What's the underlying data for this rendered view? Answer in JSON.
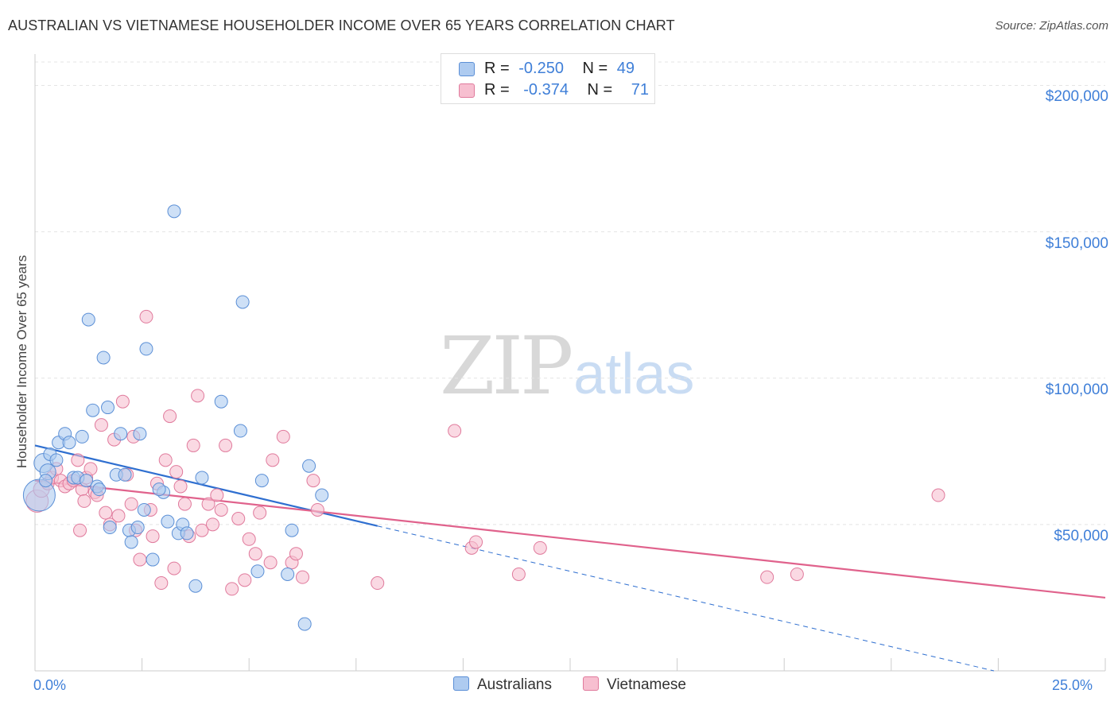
{
  "title": "AUSTRALIAN VS VIETNAMESE HOUSEHOLDER INCOME OVER 65 YEARS CORRELATION CHART",
  "source": "Source: ZipAtlas.com",
  "watermark": {
    "zip": "ZIP",
    "atlas": "atlas"
  },
  "legend": {
    "r_label": "R =",
    "n_label": "N =",
    "series": [
      {
        "name": "Australians",
        "r": "-0.250",
        "n": "49",
        "fill": "#aecbf0",
        "stroke": "#5b8fd6"
      },
      {
        "name": "Vietnamese",
        "r": "-0.374",
        "n": "71",
        "fill": "#f7bfd0",
        "stroke": "#e07a9c"
      }
    ]
  },
  "chart_data": {
    "type": "scatter",
    "title": "AUSTRALIAN VS VIETNAMESE HOUSEHOLDER INCOME OVER 65 YEARS CORRELATION CHART",
    "xlabel": "",
    "ylabel": "Householder Income Over 65 years",
    "xlim": [
      0,
      25
    ],
    "ylim": [
      0,
      208000
    ],
    "x_tick_labels": [
      "0.0%",
      "25.0%"
    ],
    "y_ticks": [
      50000,
      100000,
      150000,
      200000
    ],
    "y_tick_labels": [
      "$50,000",
      "$100,000",
      "$150,000",
      "$200,000"
    ],
    "grid": true,
    "series": [
      {
        "name": "Australians",
        "color": "#5b8fd6",
        "fill": "#aecbf0",
        "trend": {
          "x0": 0,
          "y0": 77000,
          "x1": 8.0,
          "y1": 49500,
          "dashed_to_x": 25,
          "dashed_to_y": -9000,
          "color": "#2f6fd0"
        },
        "points": [
          [
            0.1,
            60000,
            20
          ],
          [
            0.2,
            71000,
            12
          ],
          [
            0.3,
            68000,
            10
          ],
          [
            0.35,
            74000,
            8
          ],
          [
            0.5,
            72000,
            8
          ],
          [
            0.55,
            78000,
            8
          ],
          [
            0.7,
            81000,
            8
          ],
          [
            0.8,
            78000,
            8
          ],
          [
            0.9,
            66000,
            8
          ],
          [
            1.0,
            66000,
            8
          ],
          [
            1.1,
            80000,
            8
          ],
          [
            1.2,
            65000,
            8
          ],
          [
            1.25,
            120000,
            8
          ],
          [
            1.35,
            89000,
            8
          ],
          [
            1.45,
            63000,
            8
          ],
          [
            1.5,
            62000,
            8
          ],
          [
            1.6,
            107000,
            8
          ],
          [
            1.7,
            90000,
            8
          ],
          [
            1.75,
            49000,
            8
          ],
          [
            1.9,
            67000,
            8
          ],
          [
            2.0,
            81000,
            8
          ],
          [
            2.1,
            67000,
            8
          ],
          [
            2.2,
            48000,
            8
          ],
          [
            2.25,
            44000,
            8
          ],
          [
            2.4,
            49000,
            8
          ],
          [
            2.45,
            81000,
            8
          ],
          [
            2.55,
            55000,
            8
          ],
          [
            2.6,
            110000,
            8
          ],
          [
            2.75,
            38000,
            8
          ],
          [
            3.0,
            61000,
            8
          ],
          [
            2.9,
            62000,
            8
          ],
          [
            3.1,
            51000,
            8
          ],
          [
            3.25,
            157000,
            8
          ],
          [
            3.35,
            47000,
            8
          ],
          [
            3.45,
            50000,
            8
          ],
          [
            3.55,
            47000,
            8
          ],
          [
            3.75,
            29000,
            8
          ],
          [
            3.9,
            66000,
            8
          ],
          [
            4.35,
            92000,
            8
          ],
          [
            4.8,
            82000,
            8
          ],
          [
            4.85,
            126000,
            8
          ],
          [
            5.2,
            34000,
            8
          ],
          [
            5.3,
            65000,
            8
          ],
          [
            5.9,
            33000,
            8
          ],
          [
            6.0,
            48000,
            8
          ],
          [
            6.3,
            16000,
            8
          ],
          [
            6.4,
            70000,
            8
          ],
          [
            6.7,
            60000,
            8
          ],
          [
            0.25,
            65000,
            8
          ]
        ]
      },
      {
        "name": "Vietnamese",
        "color": "#e07a9c",
        "fill": "#f7bfd0",
        "trend": {
          "x0": 0,
          "y0": 65000,
          "x1": 25,
          "y1": 25000,
          "color": "#e0628c"
        },
        "points": [
          [
            0.05,
            58000,
            14
          ],
          [
            0.15,
            62000,
            10
          ],
          [
            0.3,
            64000,
            8
          ],
          [
            0.4,
            66000,
            8
          ],
          [
            0.5,
            69000,
            8
          ],
          [
            0.6,
            65000,
            8
          ],
          [
            0.7,
            63000,
            8
          ],
          [
            0.8,
            64000,
            8
          ],
          [
            0.9,
            65000,
            8
          ],
          [
            1.0,
            72000,
            8
          ],
          [
            1.05,
            48000,
            8
          ],
          [
            1.1,
            62000,
            8
          ],
          [
            1.15,
            58000,
            8
          ],
          [
            1.2,
            66000,
            8
          ],
          [
            1.3,
            69000,
            8
          ],
          [
            1.4,
            61000,
            8
          ],
          [
            1.45,
            60000,
            8
          ],
          [
            1.55,
            84000,
            8
          ],
          [
            1.65,
            54000,
            8
          ],
          [
            1.75,
            50000,
            8
          ],
          [
            1.85,
            79000,
            8
          ],
          [
            1.95,
            53000,
            8
          ],
          [
            2.05,
            92000,
            8
          ],
          [
            2.15,
            67000,
            8
          ],
          [
            2.25,
            57000,
            8
          ],
          [
            2.3,
            80000,
            8
          ],
          [
            2.35,
            48000,
            8
          ],
          [
            2.45,
            38000,
            8
          ],
          [
            2.6,
            121000,
            8
          ],
          [
            2.7,
            55000,
            8
          ],
          [
            2.75,
            46000,
            8
          ],
          [
            2.85,
            64000,
            8
          ],
          [
            2.95,
            30000,
            8
          ],
          [
            3.05,
            72000,
            8
          ],
          [
            3.15,
            87000,
            8
          ],
          [
            3.25,
            35000,
            8
          ],
          [
            3.3,
            68000,
            8
          ],
          [
            3.4,
            63000,
            8
          ],
          [
            3.5,
            57000,
            8
          ],
          [
            3.6,
            46000,
            8
          ],
          [
            3.7,
            77000,
            8
          ],
          [
            3.8,
            94000,
            8
          ],
          [
            3.9,
            48000,
            8
          ],
          [
            4.05,
            57000,
            8
          ],
          [
            4.15,
            50000,
            8
          ],
          [
            4.25,
            60000,
            8
          ],
          [
            4.35,
            55000,
            8
          ],
          [
            4.45,
            77000,
            8
          ],
          [
            4.6,
            28000,
            8
          ],
          [
            4.75,
            52000,
            8
          ],
          [
            4.9,
            31000,
            8
          ],
          [
            5.0,
            45000,
            8
          ],
          [
            5.15,
            40000,
            8
          ],
          [
            5.25,
            54000,
            8
          ],
          [
            5.5,
            37000,
            8
          ],
          [
            5.55,
            72000,
            8
          ],
          [
            5.8,
            80000,
            8
          ],
          [
            6.0,
            37000,
            8
          ],
          [
            6.1,
            40000,
            8
          ],
          [
            6.25,
            32000,
            8
          ],
          [
            6.5,
            65000,
            8
          ],
          [
            6.6,
            55000,
            8
          ],
          [
            8.0,
            30000,
            8
          ],
          [
            9.8,
            82000,
            8
          ],
          [
            10.2,
            42000,
            8
          ],
          [
            10.3,
            44000,
            8
          ],
          [
            11.3,
            33000,
            8
          ],
          [
            11.8,
            42000,
            8
          ],
          [
            17.1,
            32000,
            8
          ],
          [
            17.8,
            33000,
            8
          ],
          [
            21.1,
            60000,
            8
          ]
        ]
      }
    ]
  }
}
